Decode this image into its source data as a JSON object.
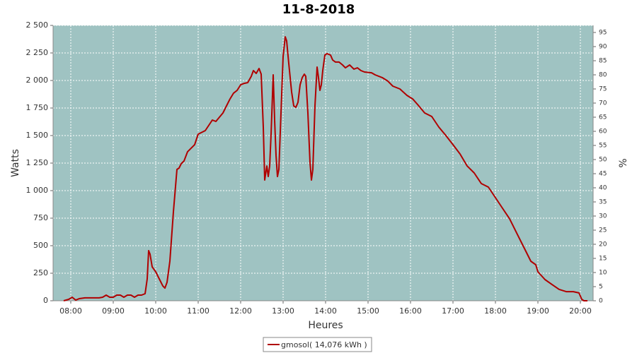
{
  "chart_data": {
    "type": "line",
    "title": "11-8-2018",
    "xlabel": "Heures",
    "ylabel": "Watts",
    "y2label": "%",
    "xlim": [
      455,
      1218
    ],
    "xticks": [
      {
        "value": 480,
        "label": "08:00"
      },
      {
        "value": 540,
        "label": "09:00"
      },
      {
        "value": 600,
        "label": "10:00"
      },
      {
        "value": 660,
        "label": "11:00"
      },
      {
        "value": 720,
        "label": "12:00"
      },
      {
        "value": 780,
        "label": "13:00"
      },
      {
        "value": 840,
        "label": "14:00"
      },
      {
        "value": 900,
        "label": "15:00"
      },
      {
        "value": 960,
        "label": "16:00"
      },
      {
        "value": 1020,
        "label": "17:00"
      },
      {
        "value": 1080,
        "label": "18:00"
      },
      {
        "value": 1140,
        "label": "19:00"
      },
      {
        "value": 1200,
        "label": "20:00"
      }
    ],
    "ylim": [
      0,
      2500
    ],
    "yticks": [
      0,
      250,
      500,
      750,
      {
        "value": 1000,
        "label": "1 000"
      },
      {
        "value": 1250,
        "label": "1 250"
      },
      {
        "value": 1500,
        "label": "1 500"
      },
      {
        "value": 1750,
        "label": "1 750"
      },
      {
        "value": 2000,
        "label": "2 000"
      },
      {
        "value": 2250,
        "label": "2 250"
      },
      {
        "value": 2500,
        "label": "2 500"
      }
    ],
    "y2lim": [
      0,
      97.5
    ],
    "y2ticks": [
      0,
      5,
      10,
      15,
      20,
      25,
      30,
      35,
      40,
      45,
      50,
      55,
      60,
      65,
      70,
      75,
      80,
      85,
      90,
      95
    ],
    "grid": true,
    "legend": "bottom",
    "x": [
      470,
      477,
      482,
      487,
      492,
      500,
      520,
      525,
      530,
      535,
      540,
      545,
      550,
      555,
      560,
      565,
      570,
      575,
      580,
      585,
      588,
      590,
      592,
      595,
      600,
      605,
      610,
      613,
      616,
      620,
      625,
      630,
      633,
      636,
      640,
      645,
      650,
      655,
      660,
      670,
      680,
      685,
      695,
      700,
      705,
      710,
      715,
      720,
      725,
      730,
      735,
      738,
      742,
      746,
      749,
      752,
      754,
      757,
      759,
      761,
      763,
      766,
      768,
      770,
      772,
      774,
      777,
      780,
      783,
      785,
      788,
      792,
      795,
      798,
      801,
      804,
      807,
      810,
      812,
      815,
      818,
      820,
      822,
      825,
      828,
      830,
      832,
      834,
      836,
      839,
      842,
      847,
      850,
      854,
      859,
      864,
      868,
      874,
      880,
      885,
      890,
      895,
      905,
      910,
      920,
      928,
      935,
      945,
      955,
      963,
      970,
      980,
      990,
      1000,
      1010,
      1020,
      1030,
      1040,
      1050,
      1060,
      1070,
      1080,
      1090,
      1100,
      1110,
      1120,
      1130,
      1137,
      1140,
      1150,
      1160,
      1170,
      1180,
      1190,
      1198,
      1202,
      1205,
      1210
    ],
    "series": [
      {
        "name": "gmosol( 14,076 kWh )",
        "color": "#b00000",
        "values": [
          0,
          13,
          32,
          6,
          19,
          26,
          26,
          32,
          51,
          32,
          32,
          51,
          51,
          32,
          51,
          51,
          32,
          51,
          51,
          64,
          199,
          455,
          423,
          308,
          263,
          199,
          135,
          115,
          167,
          359,
          808,
          1192,
          1205,
          1244,
          1269,
          1353,
          1385,
          1417,
          1513,
          1545,
          1641,
          1628,
          1705,
          1769,
          1833,
          1885,
          1910,
          1961,
          1974,
          1981,
          2038,
          2090,
          2064,
          2109,
          2058,
          1577,
          1096,
          1224,
          1128,
          1224,
          1513,
          2051,
          1641,
          1320,
          1128,
          1192,
          1705,
          2218,
          2397,
          2359,
          2154,
          1897,
          1769,
          1756,
          1801,
          1961,
          2026,
          2058,
          2038,
          1705,
          1256,
          1096,
          1192,
          1769,
          2122,
          2026,
          1910,
          1961,
          2090,
          2231,
          2244,
          2231,
          2186,
          2167,
          2167,
          2141,
          2115,
          2141,
          2103,
          2115,
          2090,
          2077,
          2070,
          2051,
          2026,
          1994,
          1949,
          1923,
          1865,
          1833,
          1782,
          1705,
          1673,
          1577,
          1500,
          1417,
          1333,
          1224,
          1160,
          1064,
          1032,
          936,
          840,
          744,
          615,
          487,
          359,
          327,
          263,
          192,
          147,
          103,
          83,
          83,
          71,
          13,
          0,
          0
        ]
      }
    ]
  }
}
